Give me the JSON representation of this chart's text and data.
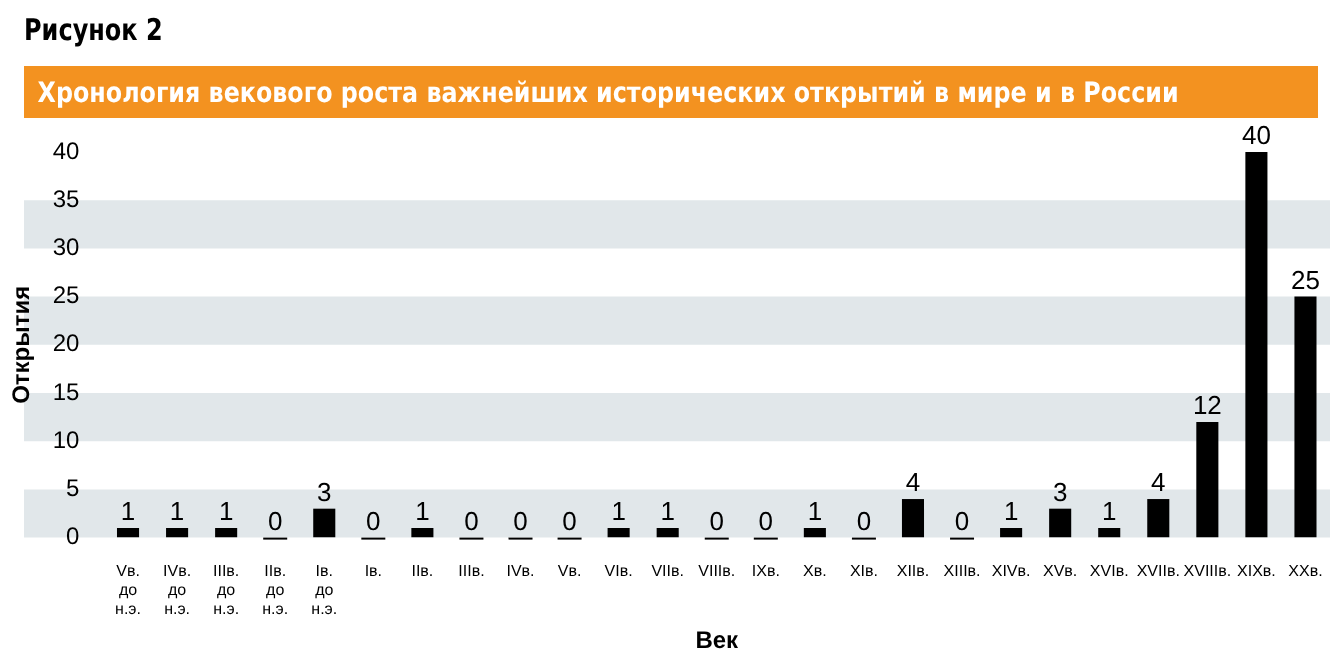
{
  "chart_data": {
    "type": "bar",
    "title": "Рисунок 2",
    "subtitle": "Хронология векового роста важнейших исторических открытий в мире и в России",
    "xlabel": "Век",
    "ylabel": "Открытия",
    "categories": [
      "Vв. до н.э.",
      "IVв. до н.э.",
      "IIIв. до н.э.",
      "IIв. до н.э.",
      "Iв. до н.э.",
      "Iв.",
      "IIв.",
      "IIIв.",
      "IVв.",
      "Vв.",
      "VIв.",
      "VIIв.",
      "VIIIв.",
      "IXв.",
      "Xв.",
      "XIв.",
      "XIIв.",
      "XIIIв.",
      "XIVв.",
      "XVв.",
      "XVIв.",
      "XVIIв.",
      "XVIIIв.",
      "XIXв.",
      "XXв."
    ],
    "values": [
      1,
      1,
      1,
      0,
      3,
      0,
      1,
      0,
      0,
      0,
      1,
      1,
      0,
      0,
      1,
      0,
      4,
      0,
      1,
      3,
      1,
      4,
      12,
      40,
      25
    ],
    "color": "#000000",
    "ylim": [
      0,
      40
    ],
    "yticks": [
      0,
      5,
      10,
      15,
      20,
      25,
      30,
      35,
      40
    ],
    "data_labels": true
  }
}
